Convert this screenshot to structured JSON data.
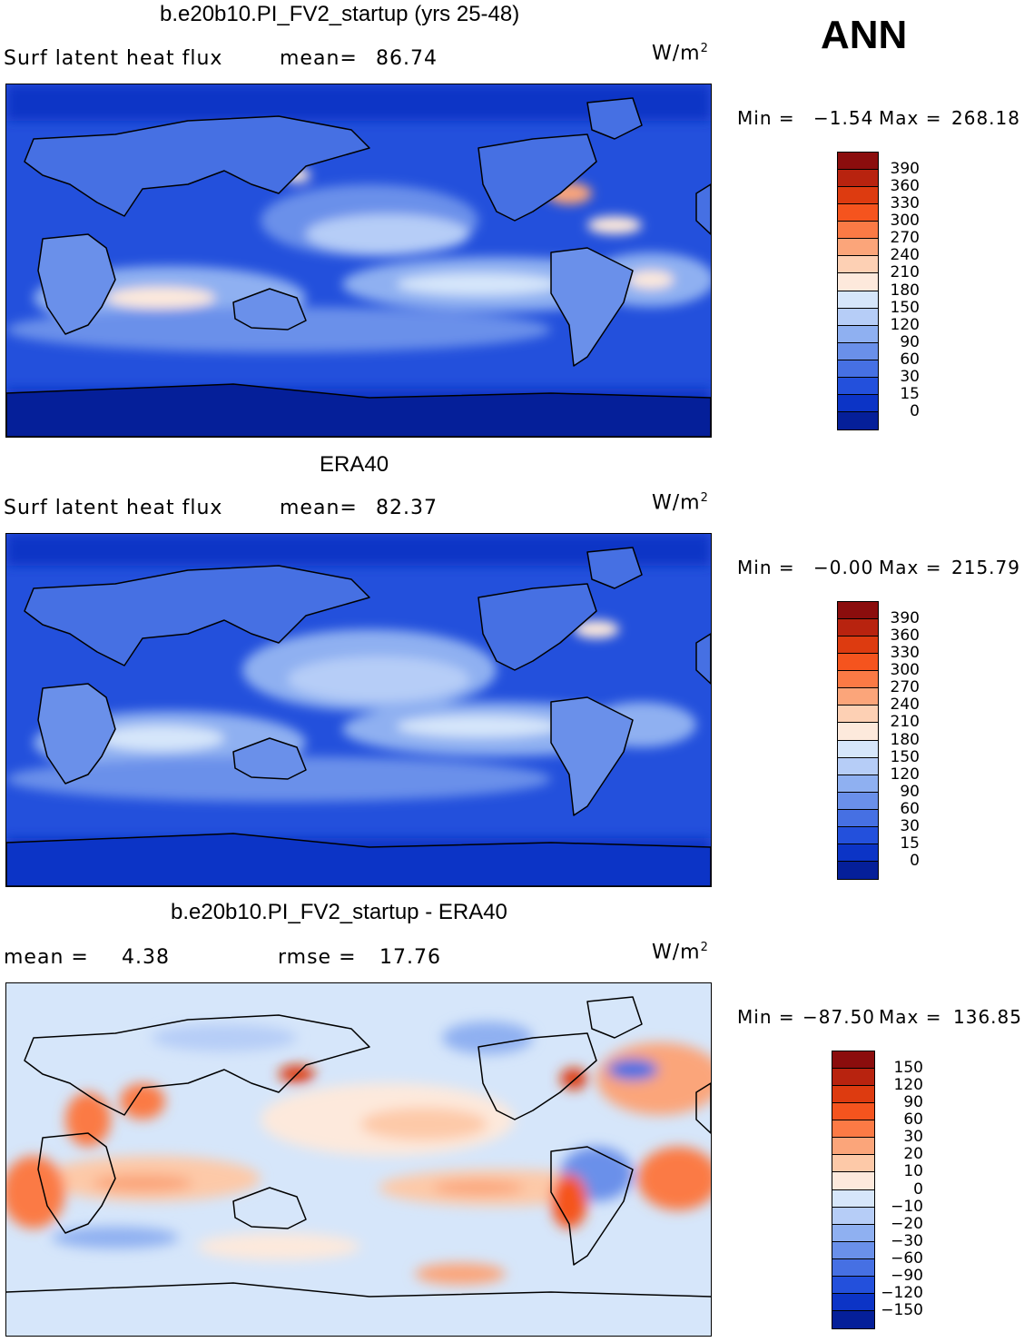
{
  "season": "ANN",
  "panels": [
    {
      "title": "b.e20b10.PI_FV2_startup (yrs 25-48)",
      "left_label": "Surf latent heat flux",
      "mid_label": "mean=",
      "mid_value": "86.74",
      "units": "W/m",
      "units_sup": "2",
      "min_label": "Min =",
      "min_value": "−1.54",
      "max_label": "Max =",
      "max_value": "268.18",
      "colorbar_labels": [
        "390",
        "360",
        "330",
        "300",
        "270",
        "240",
        "210",
        "180",
        "150",
        "120",
        "90",
        "60",
        "30",
        "15",
        "0"
      ],
      "colors": [
        "#8b0d0d",
        "#b8230f",
        "#dd3b10",
        "#f5541e",
        "#fb7a45",
        "#fba57a",
        "#fdd0b4",
        "#fde9dc",
        "#d6e6fa",
        "#b6cdf7",
        "#8fb0f1",
        "#6a90ea",
        "#4670e3",
        "#2350dc",
        "#0c34c6",
        "#051f99"
      ]
    },
    {
      "title": "ERA40",
      "left_label": "Surf latent heat flux",
      "mid_label": "mean=",
      "mid_value": "82.37",
      "units": "W/m",
      "units_sup": "2",
      "min_label": "Min =",
      "min_value": "−0.00",
      "max_label": "Max =",
      "max_value": "215.79",
      "colorbar_labels": [
        "390",
        "360",
        "330",
        "300",
        "270",
        "240",
        "210",
        "180",
        "150",
        "120",
        "90",
        "60",
        "30",
        "15",
        "0"
      ],
      "colors": [
        "#8b0d0d",
        "#b8230f",
        "#dd3b10",
        "#f5541e",
        "#fb7a45",
        "#fba57a",
        "#fdd0b4",
        "#fde9dc",
        "#d6e6fa",
        "#b6cdf7",
        "#8fb0f1",
        "#6a90ea",
        "#4670e3",
        "#2350dc",
        "#0c34c6",
        "#051f99"
      ]
    },
    {
      "title": "b.e20b10.PI_FV2_startup - ERA40",
      "left_label": "mean =",
      "left_value": "4.38",
      "mid_label": "rmse =",
      "mid_value": "17.76",
      "units": "W/m",
      "units_sup": "2",
      "min_label": "Min =",
      "min_value": "−87.50",
      "max_label": "Max =",
      "max_value": "136.85",
      "colorbar_labels": [
        "150",
        "120",
        "90",
        "60",
        "30",
        "20",
        "10",
        "0",
        "−10",
        "−20",
        "−30",
        "−60",
        "−90",
        "−120",
        "−150"
      ],
      "colors": [
        "#8b0d0d",
        "#b8230f",
        "#dd3b10",
        "#f5541e",
        "#fb7a45",
        "#fba57a",
        "#fdc9a8",
        "#fde9dc",
        "#d6e6fa",
        "#b6cdf7",
        "#8fb0f1",
        "#6a90ea",
        "#4670e3",
        "#2350dc",
        "#0c34c6",
        "#051f99"
      ]
    }
  ]
}
